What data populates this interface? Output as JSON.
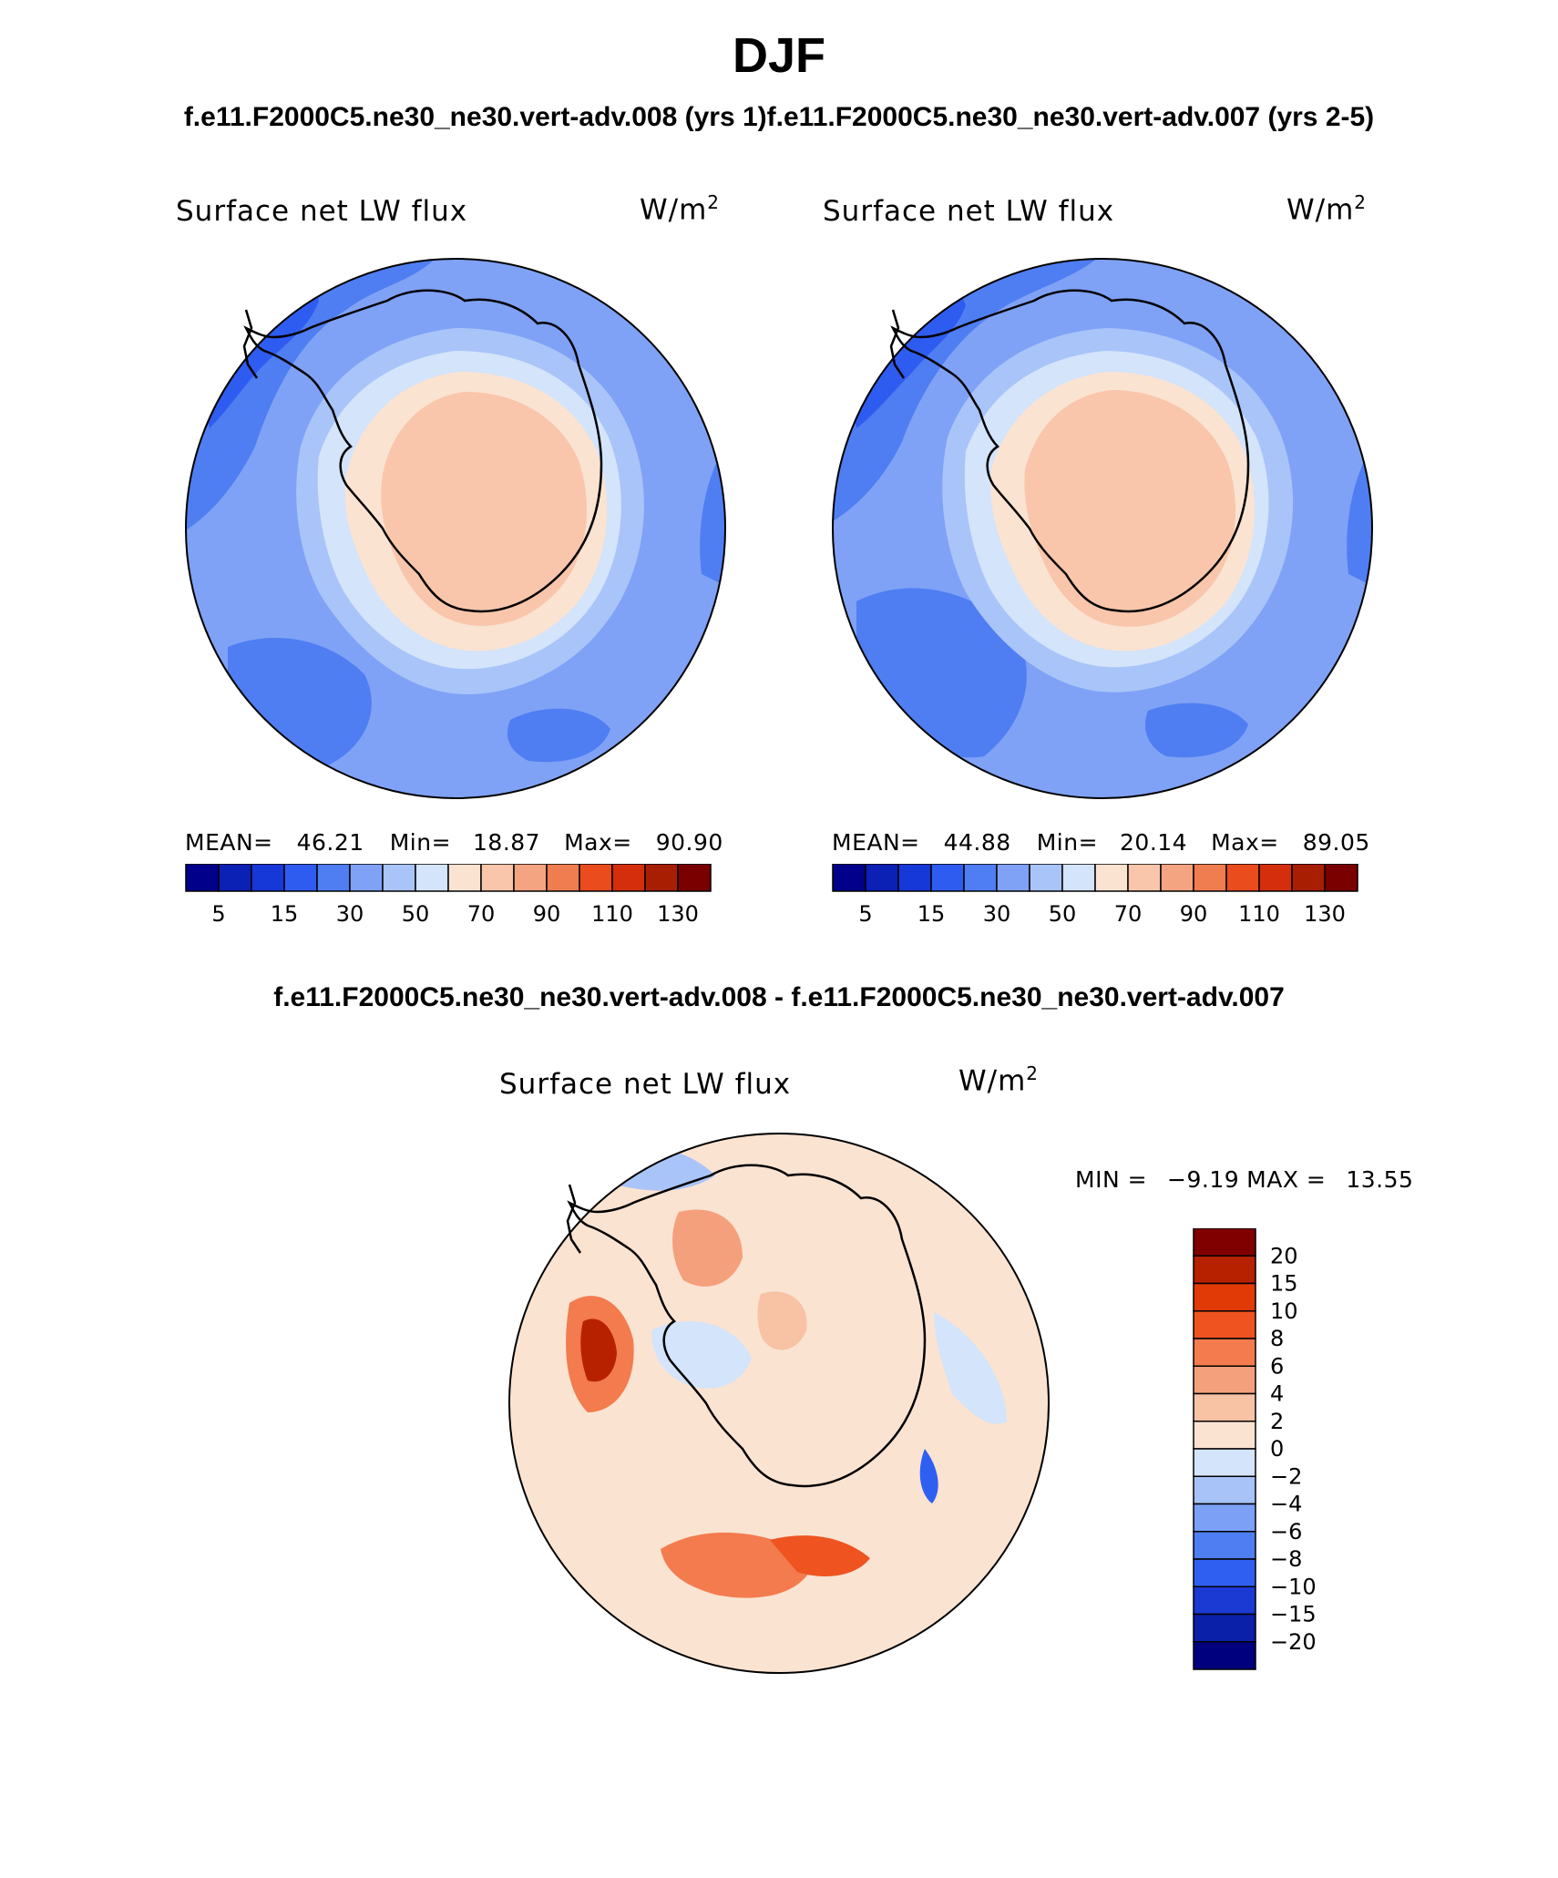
{
  "figure": {
    "title": "DJF",
    "subtitle_left": "f.e11.F2000C5.ne30_ne30.vert-adv.008 (yrs 1)",
    "subtitle_right": "f.e11.F2000C5.ne30_ne30.vert-adv.007 (yrs 2-5)",
    "diff_title": "f.e11.F2000C5.ne30_ne30.vert-adv.008 - f.e11.F2000C5.ne30_ne30.vert-adv.007"
  },
  "panels": [
    {
      "variable": "Surface net LW flux",
      "units_base": "W/m",
      "units_exp": "2",
      "mean_label": "MEAN=",
      "mean": "46.21",
      "min_label": "Min=",
      "min": "18.87",
      "max_label": "Max=",
      "max": "90.90"
    },
    {
      "variable": "Surface net LW flux",
      "units_base": "W/m",
      "units_exp": "2",
      "mean_label": "MEAN=",
      "mean": "44.88",
      "min_label": "Min=",
      "min": "20.14",
      "max_label": "Max=",
      "max": "89.05"
    },
    {
      "variable": "Surface net LW flux",
      "units_base": "W/m",
      "units_exp": "2",
      "min_label": "MIN =",
      "min": "−9.19",
      "max_label": "MAX =",
      "max": "13.55"
    }
  ],
  "colors": {
    "abs_scale": [
      "#00008a",
      "#0b20b4",
      "#1638d8",
      "#2f5cf0",
      "#4f7ef2",
      "#7fa2f6",
      "#a9c4f8",
      "#d3e4fb",
      "#fbe3d2",
      "#f9c6ac",
      "#f5a482",
      "#f07d4f",
      "#eb4c1e",
      "#d42e0c",
      "#a81e02",
      "#7a0000"
    ],
    "diff_scale": [
      "#00007f",
      "#0b20a8",
      "#1b3ad3",
      "#2f5ff0",
      "#4f7ef2",
      "#7ba0f6",
      "#a7c3f7",
      "#d3e4fb",
      "#fbe3d2",
      "#f8c2a4",
      "#f5a07c",
      "#f37b4e",
      "#ee5320",
      "#e13a07",
      "#b82100",
      "#800000"
    ],
    "ocean_abs_1": "#4f7ef2",
    "ocean_abs_2": "#4f7ef2",
    "continent_fill": "#f9c6ac"
  },
  "chart_data": [
    {
      "type": "contour-map",
      "projection": "south-polar-stereographic",
      "title": "Surface net LW flux",
      "units": "W/m2",
      "case": "f.e11.F2000C5.ne30_ne30.vert-adv.008 (yrs 1)",
      "mean": 46.21,
      "min": 18.87,
      "max": 90.9,
      "contour_levels": [
        5,
        10,
        15,
        20,
        30,
        40,
        50,
        60,
        70,
        80,
        90,
        100,
        110,
        120,
        130
      ],
      "colorbar_tick_labels": [
        "5",
        "15",
        "30",
        "50",
        "70",
        "90",
        "110",
        "130"
      ]
    },
    {
      "type": "contour-map",
      "projection": "south-polar-stereographic",
      "title": "Surface net LW flux",
      "units": "W/m2",
      "case": "f.e11.F2000C5.ne30_ne30.vert-adv.007 (yrs 2-5)",
      "mean": 44.88,
      "min": 20.14,
      "max": 89.05,
      "contour_levels": [
        5,
        10,
        15,
        20,
        30,
        40,
        50,
        60,
        70,
        80,
        90,
        100,
        110,
        120,
        130
      ],
      "colorbar_tick_labels": [
        "5",
        "15",
        "30",
        "50",
        "70",
        "90",
        "110",
        "130"
      ]
    },
    {
      "type": "contour-map",
      "projection": "south-polar-stereographic",
      "title": "Surface net LW flux",
      "units": "W/m2",
      "case": "f.e11.F2000C5.ne30_ne30.vert-adv.008 - f.e11.F2000C5.ne30_ne30.vert-adv.007",
      "min": -9.19,
      "max": 13.55,
      "contour_levels": [
        -20,
        -15,
        -10,
        -8,
        -6,
        -4,
        -2,
        0,
        2,
        4,
        6,
        8,
        10,
        15,
        20
      ],
      "colorbar_tick_labels": [
        "20",
        "15",
        "10",
        "8",
        "6",
        "4",
        "2",
        "0",
        "−2",
        "−4",
        "−6",
        "−8",
        "−10",
        "−15",
        "−20"
      ]
    }
  ]
}
